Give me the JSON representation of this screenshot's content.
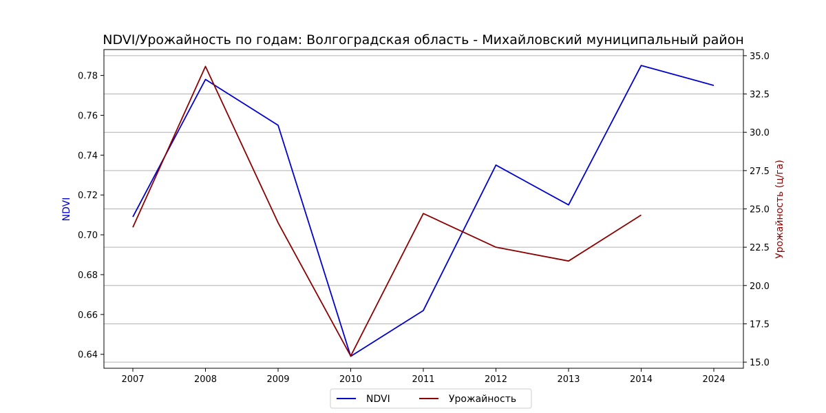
{
  "chart_data": {
    "type": "line",
    "title": "NDVI/Урожайность по годам: Волгоградская область - Михайловский муниципальный район",
    "x_ticks": [
      "2007",
      "2008",
      "2009",
      "2010",
      "2011",
      "2012",
      "2013",
      "2014",
      "2024"
    ],
    "y_left": {
      "label": "NDVI",
      "color": "#0000cc",
      "range": [
        0.633,
        0.793
      ],
      "ticks": [
        0.64,
        0.66,
        0.68,
        0.7,
        0.72,
        0.74,
        0.76,
        0.78
      ],
      "tick_labels": [
        "0.64",
        "0.66",
        "0.68",
        "0.70",
        "0.72",
        "0.74",
        "0.76",
        "0.78"
      ]
    },
    "y_right": {
      "label": "Урожайность (ц/га)",
      "color": "#8b0000",
      "range": [
        14.6,
        35.4
      ],
      "ticks": [
        15.0,
        17.5,
        20.0,
        22.5,
        25.0,
        27.5,
        30.0,
        32.5,
        35.0
      ],
      "tick_labels": [
        "15.0",
        "17.5",
        "20.0",
        "22.5",
        "25.0",
        "27.5",
        "30.0",
        "32.5",
        "35.0"
      ]
    },
    "grid": "horizontal, right axis ticks",
    "legend_position": "bottom-center",
    "series": [
      {
        "name": "NDVI",
        "axis": "left",
        "color": "#0000cc",
        "x": [
          "2007",
          "2008",
          "2009",
          "2010",
          "2011",
          "2012",
          "2013",
          "2014",
          "2024"
        ],
        "values": [
          0.709,
          0.778,
          0.755,
          0.639,
          0.662,
          0.735,
          0.715,
          0.785,
          0.775
        ]
      },
      {
        "name": "Урожайность",
        "axis": "right",
        "color": "#8b0000",
        "x": [
          "2007",
          "2008",
          "2009",
          "2010",
          "2011",
          "2012",
          "2013",
          "2014"
        ],
        "values": [
          23.8,
          34.3,
          24.1,
          15.4,
          24.7,
          22.5,
          21.6,
          24.6
        ]
      }
    ]
  }
}
